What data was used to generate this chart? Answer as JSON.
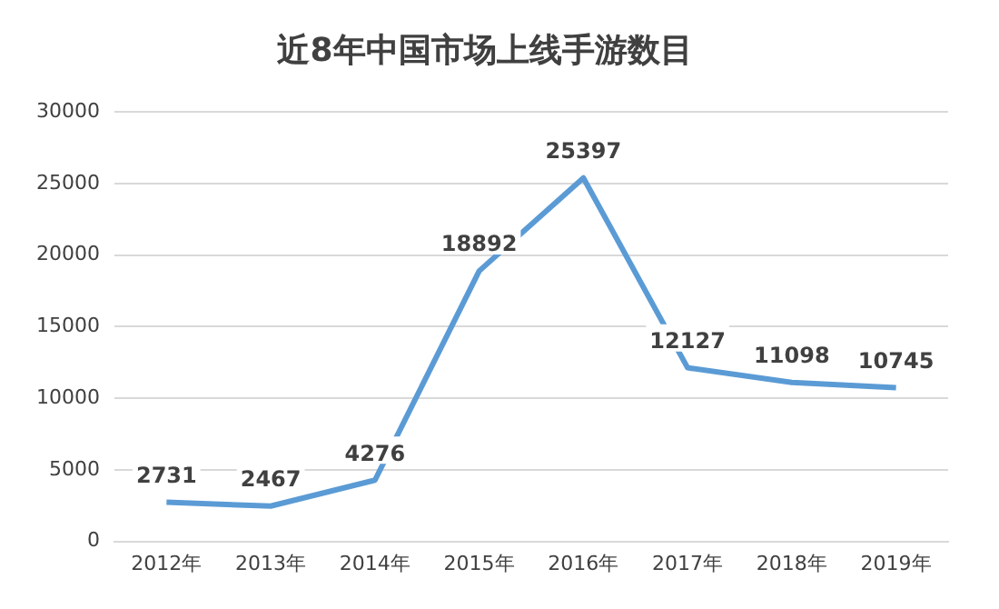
{
  "chart_data": {
    "type": "line",
    "title": "近8年中国市场上线手游数目",
    "categories": [
      "2012年",
      "2013年",
      "2014年",
      "2015年",
      "2016年",
      "2017年",
      "2018年",
      "2019年"
    ],
    "series": [
      {
        "color": "#5b9bd5",
        "values": [
          2731,
          2467,
          4276,
          18892,
          25397,
          12127,
          11098,
          10745
        ]
      }
    ],
    "ylim": [
      0,
      30000
    ],
    "yticks": [
      0,
      5000,
      10000,
      15000,
      20000,
      25000,
      30000
    ],
    "grid": "y",
    "data_labels": true,
    "legend": false,
    "marker": "none",
    "line_style": "solid"
  }
}
